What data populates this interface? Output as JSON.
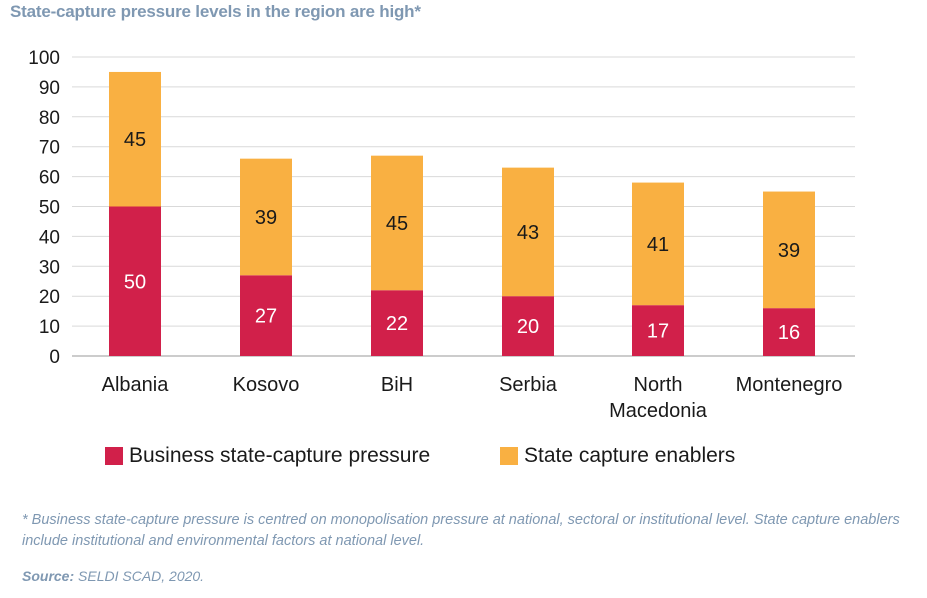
{
  "title": "State-capture pressure levels in the region are high*",
  "footnote": "* Business state-capture pressure is centred on monopolisation pressure at national, sectoral or institutional level. State capture enablers include institutional and environmental factors at national level.",
  "source_label": "Source:",
  "source_text": " SELDI SCAD, 2020.",
  "colors": {
    "pressure": "#d1204a",
    "enablers": "#f9b042",
    "title": "#7f98b2"
  },
  "chart_data": {
    "type": "bar",
    "stacked": true,
    "categories": [
      "Albania",
      "Kosovo",
      "BiH",
      "Serbia",
      "North Macedonia",
      "Montenegro"
    ],
    "category_lines": [
      [
        "Albania"
      ],
      [
        "Kosovo"
      ],
      [
        "BiH"
      ],
      [
        "Serbia"
      ],
      [
        "North",
        "Macedonia"
      ],
      [
        "Montenegro"
      ]
    ],
    "series": [
      {
        "name": "Business state-capture pressure",
        "values": [
          50,
          27,
          22,
          20,
          17,
          16
        ]
      },
      {
        "name": "State capture enablers",
        "values": [
          45,
          39,
          45,
          43,
          41,
          39
        ]
      }
    ],
    "ylim": [
      0,
      100
    ],
    "yticks": [
      0,
      10,
      20,
      30,
      40,
      50,
      60,
      70,
      80,
      90,
      100
    ],
    "grid": true,
    "legend": "bottom"
  }
}
